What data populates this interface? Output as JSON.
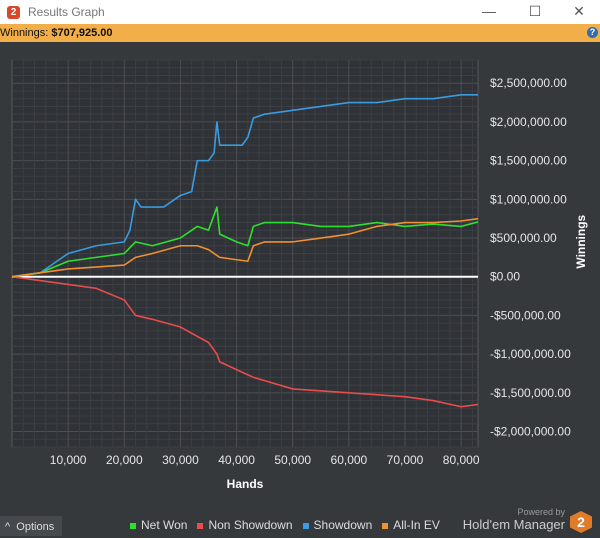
{
  "window": {
    "title": "Results Graph",
    "minimize": "—",
    "maximize": "☐",
    "close": "✕"
  },
  "summary": {
    "label": "Winnings:",
    "value": "$707,925.00",
    "help": "?"
  },
  "options_label": "Options",
  "options_icon": "^",
  "branding": {
    "powered": "Powered by",
    "name": "Hold'em Manager",
    "logo": "2"
  },
  "chart_data": {
    "type": "line",
    "xlabel": "Hands",
    "ylabel": "Winnings",
    "xlim": [
      0,
      83000
    ],
    "ylim": [
      -2200000,
      2800000
    ],
    "xticks": [
      10000,
      20000,
      30000,
      40000,
      50000,
      60000,
      70000,
      80000
    ],
    "xtick_labels": [
      "10,000",
      "20,000",
      "30,000",
      "40,000",
      "50,000",
      "60,000",
      "70,000",
      "80,000"
    ],
    "yticks": [
      2500000,
      2000000,
      1500000,
      1000000,
      500000,
      0,
      -500000,
      -1000000,
      -1500000,
      -2000000
    ],
    "ytick_labels": [
      "$2,500,000.00",
      "$2,000,000.00",
      "$1,500,000.00",
      "$1,000,000.00",
      "$500,000.00",
      "$0.00",
      "-$500,000.00",
      "-$1,000,000.00",
      "-$1,500,000.00",
      "-$2,000,000.00"
    ],
    "grid": true,
    "legend_position": "bottom",
    "series": [
      {
        "name": "Net Won",
        "color": "#2ee02e",
        "points": [
          [
            0,
            0
          ],
          [
            5000,
            50000
          ],
          [
            10000,
            200000
          ],
          [
            15000,
            250000
          ],
          [
            20000,
            300000
          ],
          [
            22000,
            450000
          ],
          [
            25000,
            400000
          ],
          [
            30000,
            500000
          ],
          [
            33000,
            650000
          ],
          [
            35000,
            600000
          ],
          [
            36500,
            900000
          ],
          [
            37000,
            550000
          ],
          [
            40000,
            450000
          ],
          [
            42000,
            400000
          ],
          [
            43000,
            650000
          ],
          [
            45000,
            700000
          ],
          [
            50000,
            700000
          ],
          [
            55000,
            650000
          ],
          [
            60000,
            650000
          ],
          [
            65000,
            700000
          ],
          [
            70000,
            650000
          ],
          [
            75000,
            680000
          ],
          [
            80000,
            650000
          ],
          [
            83000,
            708000
          ]
        ]
      },
      {
        "name": "Non Showdown",
        "color": "#e84c4c",
        "points": [
          [
            0,
            0
          ],
          [
            5000,
            -50000
          ],
          [
            10000,
            -100000
          ],
          [
            15000,
            -150000
          ],
          [
            20000,
            -300000
          ],
          [
            22000,
            -500000
          ],
          [
            25000,
            -550000
          ],
          [
            30000,
            -650000
          ],
          [
            35000,
            -850000
          ],
          [
            36500,
            -1000000
          ],
          [
            37000,
            -1100000
          ],
          [
            40000,
            -1200000
          ],
          [
            43000,
            -1300000
          ],
          [
            50000,
            -1450000
          ],
          [
            60000,
            -1500000
          ],
          [
            70000,
            -1550000
          ],
          [
            75000,
            -1600000
          ],
          [
            80000,
            -1680000
          ],
          [
            83000,
            -1650000
          ]
        ]
      },
      {
        "name": "Showdown",
        "color": "#3a9be0",
        "points": [
          [
            0,
            0
          ],
          [
            5000,
            50000
          ],
          [
            10000,
            300000
          ],
          [
            15000,
            400000
          ],
          [
            20000,
            450000
          ],
          [
            21000,
            600000
          ],
          [
            22000,
            1000000
          ],
          [
            23000,
            900000
          ],
          [
            27000,
            900000
          ],
          [
            30000,
            1050000
          ],
          [
            32000,
            1100000
          ],
          [
            33000,
            1500000
          ],
          [
            35000,
            1500000
          ],
          [
            36000,
            1600000
          ],
          [
            36500,
            2000000
          ],
          [
            37000,
            1700000
          ],
          [
            41000,
            1700000
          ],
          [
            42000,
            1800000
          ],
          [
            43000,
            2050000
          ],
          [
            45000,
            2100000
          ],
          [
            50000,
            2150000
          ],
          [
            55000,
            2200000
          ],
          [
            60000,
            2250000
          ],
          [
            65000,
            2250000
          ],
          [
            70000,
            2300000
          ],
          [
            75000,
            2300000
          ],
          [
            80000,
            2350000
          ],
          [
            83000,
            2350000
          ]
        ]
      },
      {
        "name": "All-In EV",
        "color": "#f0902e",
        "points": [
          [
            0,
            0
          ],
          [
            5000,
            50000
          ],
          [
            10000,
            100000
          ],
          [
            20000,
            150000
          ],
          [
            22000,
            250000
          ],
          [
            25000,
            300000
          ],
          [
            30000,
            400000
          ],
          [
            33000,
            400000
          ],
          [
            35000,
            350000
          ],
          [
            37000,
            250000
          ],
          [
            42000,
            200000
          ],
          [
            43000,
            400000
          ],
          [
            45000,
            450000
          ],
          [
            50000,
            450000
          ],
          [
            55000,
            500000
          ],
          [
            60000,
            550000
          ],
          [
            65000,
            650000
          ],
          [
            70000,
            700000
          ],
          [
            75000,
            700000
          ],
          [
            80000,
            720000
          ],
          [
            83000,
            750000
          ]
        ]
      }
    ]
  }
}
